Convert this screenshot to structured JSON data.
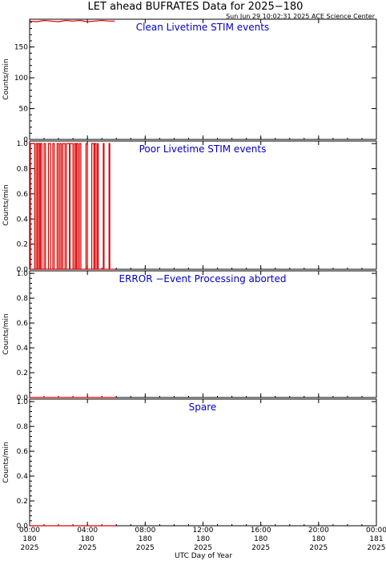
{
  "title": "LET ahead BUFRATES Data for 2025−180",
  "timestamp": "Sun Jun 29 10:02:31 2025 ACE Science Center",
  "xlabel": "UTC Day of Year",
  "colors": {
    "series": "#dd0000",
    "label": "#0000cc",
    "axis": "#000000"
  },
  "chart_data": [
    {
      "type": "line",
      "label": "Clean Livetime STIM events",
      "ylabel": "Counts/min",
      "ylim": [
        0,
        195
      ],
      "yticks": [
        "0",
        "50",
        "100",
        "150"
      ],
      "ytick_values": [
        0,
        50,
        100,
        150
      ],
      "series": [
        {
          "values_hours": [
            0,
            0.5,
            1,
            1.5,
            2,
            2.5,
            3,
            3.5,
            4,
            4.5,
            5,
            5.5,
            5.9
          ],
          "values": [
            192,
            191,
            193,
            192,
            191,
            193,
            192,
            193,
            191,
            192,
            193,
            192,
            192
          ]
        }
      ]
    },
    {
      "type": "line",
      "label": "Poor Livetime STIM events",
      "ylabel": "Counts/min",
      "ylim": [
        0,
        1.02
      ],
      "yticks": [
        "0.0",
        "0.2",
        "0.4",
        "0.6",
        "0.8",
        "1.0"
      ],
      "ytick_values": [
        0,
        0.2,
        0.4,
        0.6,
        0.8,
        1.0
      ],
      "pulses_hours": [
        [
          0.05,
          0.35
        ],
        [
          0.45,
          0.55
        ],
        [
          0.6,
          0.7
        ],
        [
          0.75,
          0.85
        ],
        [
          1.0,
          1.1
        ],
        [
          1.3,
          1.45
        ],
        [
          1.6,
          1.7
        ],
        [
          1.9,
          2.0
        ],
        [
          2.1,
          2.2
        ],
        [
          2.3,
          2.45
        ],
        [
          2.55,
          2.75
        ],
        [
          2.8,
          3.0
        ],
        [
          3.1,
          3.2
        ],
        [
          3.25,
          3.35
        ],
        [
          3.45,
          3.55
        ],
        [
          3.9,
          4.0
        ],
        [
          4.3,
          4.45
        ],
        [
          4.5,
          4.6
        ],
        [
          4.7,
          4.75
        ],
        [
          5.1,
          5.15
        ],
        [
          5.5,
          5.55
        ]
      ],
      "end_hour": 5.9
    },
    {
      "type": "line",
      "label": "ERROR −Event Processing aborted",
      "ylabel": "Counts/min",
      "ylim": [
        0,
        1.02
      ],
      "yticks": [
        "0.0",
        "0.2",
        "0.4",
        "0.6",
        "0.8",
        "1.0"
      ],
      "ytick_values": [
        0,
        0.2,
        0.4,
        0.6,
        0.8,
        1.0
      ],
      "series": [
        {
          "values_hours": [
            0,
            5.9
          ],
          "values": [
            0,
            0
          ]
        }
      ]
    },
    {
      "type": "line",
      "label": "Spare",
      "ylabel": "Counts/min",
      "ylim": [
        0,
        1.02
      ],
      "yticks": [
        "0.0",
        "0.2",
        "0.4",
        "0.6",
        "0.8",
        "1.0"
      ],
      "ytick_values": [
        0,
        0.2,
        0.4,
        0.6,
        0.8,
        1.0
      ],
      "series": [
        {
          "values_hours": [
            0,
            5.9
          ],
          "values": [
            0,
            0
          ]
        }
      ]
    }
  ],
  "xaxis": {
    "range_hours": [
      0,
      24
    ],
    "ticks": [
      {
        "time": "00:00",
        "day": "180",
        "year": "2025"
      },
      {
        "time": "04:00",
        "day": "180",
        "year": "2025"
      },
      {
        "time": "08:00",
        "day": "180",
        "year": "2025"
      },
      {
        "time": "12:00",
        "day": "180",
        "year": "2025"
      },
      {
        "time": "16:00",
        "day": "180",
        "year": "2025"
      },
      {
        "time": "20:00",
        "day": "180",
        "year": "2025"
      },
      {
        "time": "00:00",
        "day": "181",
        "year": "2025"
      }
    ]
  }
}
